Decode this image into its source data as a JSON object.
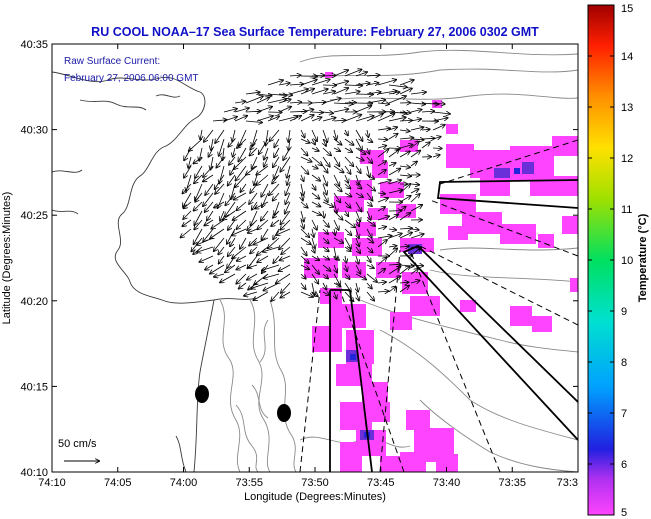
{
  "title": "RU COOL  NOAA–17  Sea Surface Temperature:  February 27, 2006 0302 GMT",
  "annotation": {
    "line1": "Raw Surface Current:",
    "line2": "February 27, 2006 06:00 GMT"
  },
  "scale_label": "50 cm/s",
  "map": {
    "xlabel": "Longitude (Degrees:Minutes)",
    "ylabel": "Latitude (Degrees:Minutes)",
    "x_ticks": [
      "74:10",
      "74:05",
      "74:00",
      "73:55",
      "73:50",
      "73:45",
      "73:40",
      "73:35",
      "73:3"
    ],
    "y_ticks": [
      "40:35",
      "40:30",
      "40:25",
      "40:20",
      "40:15",
      "40:10"
    ],
    "lon_range": [
      "74:10",
      "73:30"
    ],
    "lat_range": [
      "40:10",
      "40:35"
    ]
  },
  "colorbar": {
    "label": "Temperature (°C)",
    "ticks": [
      "15",
      "14",
      "13",
      "12",
      "11",
      "10",
      "9",
      "8",
      "7",
      "6",
      "5"
    ],
    "range": [
      5,
      15
    ],
    "colors": [
      "#ff44ff",
      "#7a2fd8",
      "#2020e0",
      "#00a8ff",
      "#00e0c8",
      "#00e060",
      "#a0e000",
      "#ffe000",
      "#ff9000",
      "#ff2000",
      "#b00000"
    ]
  },
  "sst_observed_range_c": [
    5,
    7
  ],
  "colors": {
    "title": "#1010c8",
    "annotation": "#1a1aa8",
    "sst_patch": "#ff44ff",
    "sst_warm": "#3030dd"
  }
}
